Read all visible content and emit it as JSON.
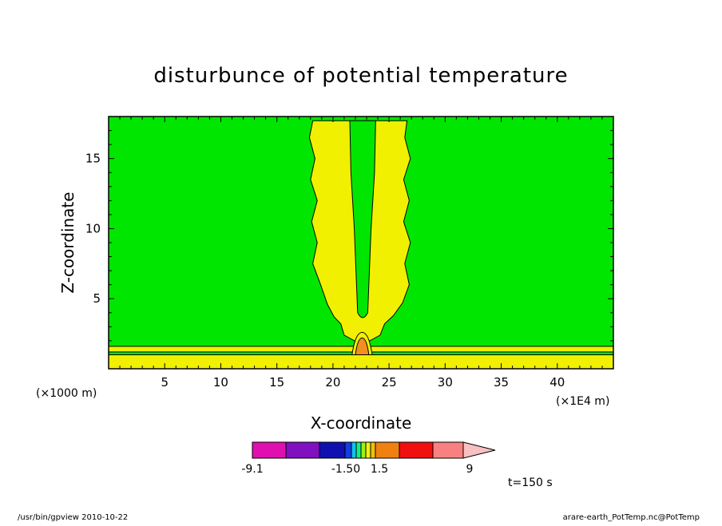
{
  "chart_data": {
    "type": "heatmap",
    "title": "disturbunce of potential temperature",
    "xlabel": "X-coordinate",
    "ylabel": "Z-coordinate",
    "x_unit": "(×1E4 m)",
    "y_unit": "(×1000 m)",
    "xlim": [
      0,
      45
    ],
    "ylim": [
      0,
      18
    ],
    "x_ticks": [
      5,
      10,
      15,
      20,
      25,
      30,
      35,
      40
    ],
    "y_ticks": [
      5,
      10,
      15
    ],
    "time_label": "t=150 s",
    "colorbar": {
      "tick_labels": [
        "-9.1",
        "-1.50",
        "1.5",
        "9"
      ],
      "colors": [
        "#e010b0",
        "#8010c0",
        "#1010b0",
        "#1040e0",
        "#10c0f0",
        "#10f080",
        "#a0f010",
        "#f0f010",
        "#f0c010",
        "#f08010",
        "#f01010",
        "#f88080",
        "#f8c0c0"
      ]
    },
    "field_colors": {
      "background": "#00e600",
      "positive_low": "#f0f000",
      "positive_mid": "#f09020"
    }
  },
  "footer": {
    "left": "/usr/bin/gpview   2010-10-22",
    "right": "arare-earth_PotTemp.nc@PotTemp"
  }
}
